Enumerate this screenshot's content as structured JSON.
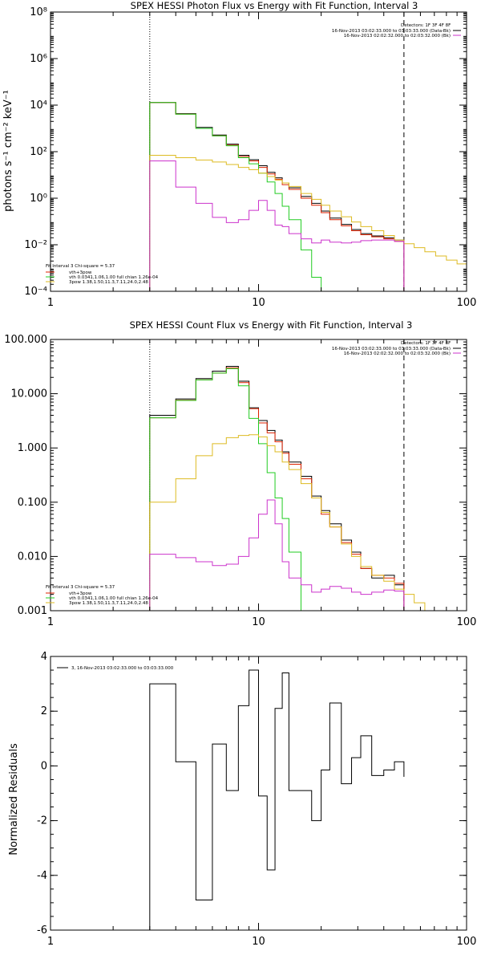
{
  "chart_data": [
    {
      "type": "line",
      "title": "SPEX HESSI Photon Flux vs Energy with Fit Function, Interval 3",
      "xlabel": "",
      "ylabel": "photons s⁻¹ cm⁻² keV⁻¹",
      "x_scale": "log",
      "y_scale": "log",
      "xlim": [
        1,
        100
      ],
      "ylim": [
        0.0001,
        100000000
      ],
      "x_ticks": [
        {
          "value": 1,
          "label": "1"
        },
        {
          "value": 10,
          "label": "10"
        },
        {
          "value": 100,
          "label": "100"
        }
      ],
      "y_ticks": [
        {
          "value": 0.0001,
          "label": "10⁻⁴"
        },
        {
          "value": 0.01,
          "label": "10⁻²"
        },
        {
          "value": 1,
          "label": "10⁰"
        },
        {
          "value": 100,
          "label": "10²"
        },
        {
          "value": 10000,
          "label": "10⁴"
        },
        {
          "value": 1000000,
          "label": "10⁶"
        },
        {
          "value": 100000000,
          "label": "10⁸"
        }
      ],
      "vlines": [
        {
          "x": 3,
          "style": "dotted",
          "color": "#000000"
        },
        {
          "x": 50,
          "style": "dashed",
          "color": "#000000"
        }
      ],
      "legend_topright": {
        "header": "Detectors: 1F 3F 4F 8F",
        "entries": [
          {
            "label": "16-Nov-2013 03:02:33.000 to 03:03:33.000 (Data-Bk)",
            "color": "#000000"
          },
          {
            "label": "16-Nov-2013 02:02:32.000 to 02:03:32.000 (Bk)",
            "color": "#cc33cc"
          }
        ]
      },
      "legend_bottomleft": {
        "header": "Fit Interval 3   Chi-square = 5.37",
        "entries": [
          {
            "label": "vth+3pow",
            "color": "#dd2200"
          },
          {
            "label": "vth 0.0341,1.06,1.00  full chian 1.26e-04",
            "color": "#22cc22"
          },
          {
            "label": "3pow 1.38,1.50,11.3,7.11,24.0,2.48",
            "color": "#ddbb22"
          }
        ]
      },
      "series": [
        {
          "name": "",
          "color": "#000000",
          "style": "step",
          "x": [
            3,
            4,
            5,
            6,
            7,
            8,
            9,
            10,
            11,
            12,
            13,
            14,
            16,
            18,
            20,
            22,
            25,
            28,
            31,
            35,
            40,
            45,
            50
          ],
          "y": [
            13000,
            4300,
            1100,
            520,
            210,
            70,
            45,
            25,
            13,
            7.5,
            4.5,
            2.8,
            1.2,
            0.6,
            0.28,
            0.14,
            0.075,
            0.045,
            0.03,
            0.024,
            0.02,
            0.016,
            0
          ]
        },
        {
          "name": "",
          "color": "#dd2200",
          "style": "step",
          "x": [
            3,
            4,
            5,
            6,
            7,
            8,
            9,
            10,
            11,
            12,
            13,
            14,
            16,
            18,
            20,
            22,
            25,
            28,
            31,
            35,
            40,
            45,
            50
          ],
          "y": [
            13000,
            4100,
            1000,
            480,
            190,
            62,
            40,
            21,
            11,
            6.5,
            3.8,
            2.4,
            1.0,
            0.5,
            0.24,
            0.12,
            0.065,
            0.04,
            0.027,
            0.022,
            0.018,
            0.014,
            0
          ]
        },
        {
          "name": "",
          "color": "#22cc22",
          "style": "step",
          "x": [
            3,
            4,
            5,
            6,
            7,
            8,
            9,
            10,
            11,
            12,
            13,
            14,
            16,
            18,
            20,
            22
          ],
          "y": [
            13000,
            4100,
            1000,
            480,
            180,
            55,
            30,
            12,
            5,
            1.6,
            0.45,
            0.12,
            0.006,
            0.0004,
            5e-05,
            0
          ]
        },
        {
          "name": "",
          "color": "#ddbb22",
          "style": "step",
          "x": [
            3,
            4,
            5,
            6,
            7,
            8,
            9,
            10,
            11,
            12,
            13,
            14,
            16,
            18,
            20,
            22,
            25,
            28,
            31,
            35,
            40,
            45,
            50,
            56,
            63,
            71,
            80,
            90,
            100
          ],
          "y": [
            70,
            55,
            44,
            36,
            28,
            21,
            17,
            12,
            8.5,
            6,
            4.5,
            3.2,
            1.6,
            0.9,
            0.5,
            0.28,
            0.16,
            0.095,
            0.06,
            0.04,
            0.025,
            0.016,
            0.011,
            0.0075,
            0.005,
            0.0033,
            0.0022,
            0.0015,
            0.0015
          ]
        },
        {
          "name": "",
          "color": "#cc33cc",
          "style": "step",
          "x": [
            3,
            4,
            5,
            6,
            7,
            8,
            9,
            10,
            11,
            12,
            13,
            14,
            16,
            18,
            20,
            22,
            25,
            28,
            31,
            35,
            40,
            45,
            50
          ],
          "y": [
            40,
            3,
            0.6,
            0.15,
            0.09,
            0.12,
            0.3,
            0.8,
            0.3,
            0.07,
            0.06,
            0.03,
            0.018,
            0.012,
            0.016,
            0.013,
            0.012,
            0.013,
            0.015,
            0.016,
            0.016,
            0.014,
            0
          ]
        }
      ]
    },
    {
      "type": "line",
      "title": "SPEX HESSI Count Flux vs Energy with Fit Function, Interval 3",
      "xlabel": "",
      "ylabel": "",
      "x_scale": "log",
      "y_scale": "log",
      "xlim": [
        1,
        100
      ],
      "ylim": [
        0.001,
        100
      ],
      "x_ticks": [
        {
          "value": 1,
          "label": "1"
        },
        {
          "value": 10,
          "label": "10"
        },
        {
          "value": 100,
          "label": "100"
        }
      ],
      "y_ticks": [
        {
          "value": 0.001,
          "label": "0.001"
        },
        {
          "value": 0.01,
          "label": "0.010"
        },
        {
          "value": 0.1,
          "label": "0.100"
        },
        {
          "value": 1,
          "label": "1.000"
        },
        {
          "value": 10,
          "label": "10.000"
        },
        {
          "value": 100,
          "label": "100.000"
        }
      ],
      "vlines": [
        {
          "x": 3,
          "style": "dotted",
          "color": "#000000"
        },
        {
          "x": 50,
          "style": "dashed",
          "color": "#000000"
        }
      ],
      "legend_topright": {
        "header": "Detectors: 1F 3F 4F 8F",
        "entries": [
          {
            "label": "16-Nov-2013 03:02:33.000 to 03:03:33.000 (Data-Bk)",
            "color": "#000000"
          },
          {
            "label": "16-Nov-2013 02:02:32.000 to 02:03:32.000 (Bk)",
            "color": "#cc33cc"
          }
        ]
      },
      "legend_bottomleft": {
        "header": "Fit Interval 3   Chi-square = 5.37",
        "entries": [
          {
            "label": "vth+3pow",
            "color": "#dd2200"
          },
          {
            "label": "vth 0.0341,1.06,1.00  full chian 1.26e-04",
            "color": "#22cc22"
          },
          {
            "label": "3pow 1.38,1.50,11.3,7.11,24.0,2.48",
            "color": "#ddbb22"
          }
        ]
      },
      "series": [
        {
          "name": "",
          "color": "#000000",
          "style": "step",
          "x": [
            3,
            4,
            5,
            6,
            7,
            8,
            9,
            10,
            11,
            12,
            13,
            14,
            16,
            18,
            20,
            22,
            25,
            28,
            31,
            35,
            40,
            45,
            50
          ],
          "y": [
            4,
            8,
            19,
            26,
            32,
            17,
            5.5,
            3.2,
            2.1,
            1.4,
            0.85,
            0.55,
            0.3,
            0.13,
            0.07,
            0.04,
            0.02,
            0.012,
            0.006,
            0.004,
            0.0045,
            0.003,
            0
          ]
        },
        {
          "name": "",
          "color": "#dd2200",
          "style": "step",
          "x": [
            3,
            4,
            5,
            6,
            7,
            8,
            9,
            10,
            11,
            12,
            13,
            14,
            16,
            18,
            20,
            22,
            25,
            28,
            31,
            35,
            40,
            45,
            50
          ],
          "y": [
            3.6,
            7.6,
            18,
            24,
            30,
            16,
            5.3,
            2.9,
            1.9,
            1.3,
            0.8,
            0.5,
            0.27,
            0.12,
            0.06,
            0.035,
            0.018,
            0.011,
            0.006,
            0.0045,
            0.004,
            0.0032,
            0
          ]
        },
        {
          "name": "",
          "color": "#22cc22",
          "style": "step",
          "x": [
            3,
            4,
            5,
            6,
            7,
            8,
            9,
            10,
            11,
            12,
            13,
            14,
            16
          ],
          "y": [
            3.6,
            7.5,
            18,
            24,
            29,
            14,
            3.5,
            1.2,
            0.35,
            0.12,
            0.05,
            0.012,
            0
          ]
        },
        {
          "name": "",
          "color": "#ddbb22",
          "style": "step",
          "x": [
            3,
            4,
            5,
            6,
            7,
            8,
            9,
            10,
            11,
            12,
            13,
            14,
            16,
            18,
            20,
            22,
            25,
            28,
            31,
            35,
            40,
            45,
            50,
            56,
            63,
            71
          ],
          "y": [
            0.1,
            0.27,
            0.72,
            1.2,
            1.55,
            1.7,
            1.75,
            1.6,
            1.1,
            0.85,
            0.55,
            0.4,
            0.22,
            0.12,
            0.065,
            0.035,
            0.017,
            0.01,
            0.0065,
            0.0045,
            0.0035,
            0.0025,
            0.002,
            0.0014,
            0.001,
            0.001
          ]
        },
        {
          "name": "",
          "color": "#cc33cc",
          "style": "step",
          "x": [
            3,
            4,
            5,
            6,
            7,
            8,
            9,
            10,
            11,
            12,
            13,
            14,
            16,
            18,
            20,
            22,
            25,
            28,
            31,
            35,
            40,
            45,
            50
          ],
          "y": [
            0.011,
            0.0095,
            0.008,
            0.0068,
            0.0072,
            0.01,
            0.022,
            0.06,
            0.11,
            0.04,
            0.008,
            0.004,
            0.003,
            0.0022,
            0.0025,
            0.0028,
            0.0026,
            0.0022,
            0.002,
            0.0022,
            0.0024,
            0.0023,
            0
          ]
        }
      ]
    },
    {
      "type": "line",
      "title": "",
      "xlabel": "",
      "ylabel": "Normalized Residuals",
      "x_scale": "log",
      "y_scale": "linear",
      "xlim": [
        1,
        100
      ],
      "ylim": [
        -6,
        4
      ],
      "x_ticks": [
        {
          "value": 1,
          "label": "1"
        },
        {
          "value": 10,
          "label": "10"
        },
        {
          "value": 100,
          "label": "100"
        }
      ],
      "y_ticks": [
        {
          "value": -6,
          "label": "-6"
        },
        {
          "value": -4,
          "label": "-4"
        },
        {
          "value": -2,
          "label": "-2"
        },
        {
          "value": 0,
          "label": "0"
        },
        {
          "value": 2,
          "label": "2"
        },
        {
          "value": 4,
          "label": "4"
        }
      ],
      "vlines": [],
      "legend_topleft": {
        "entries": [
          {
            "label": "3, 16-Nov-2013 03:02:33.000 to 03:03:33.000",
            "color": "#000000"
          }
        ]
      },
      "series": [
        {
          "name": "",
          "color": "#000000",
          "style": "step",
          "x": [
            3,
            4,
            5,
            6,
            7,
            8,
            9,
            10,
            11,
            12,
            13,
            14,
            16,
            18,
            20,
            22,
            25,
            28,
            31,
            35,
            40,
            45,
            50
          ],
          "y": [
            3,
            0.15,
            -4.9,
            0.8,
            -0.9,
            2.2,
            3.5,
            -1.1,
            -3.8,
            2.1,
            3.4,
            -0.9,
            -0.9,
            -2,
            -0.15,
            2.3,
            -0.65,
            0.3,
            1.1,
            -0.35,
            -0.15,
            0.15,
            -0.4
          ],
          "y_end": -6
        }
      ]
    }
  ]
}
